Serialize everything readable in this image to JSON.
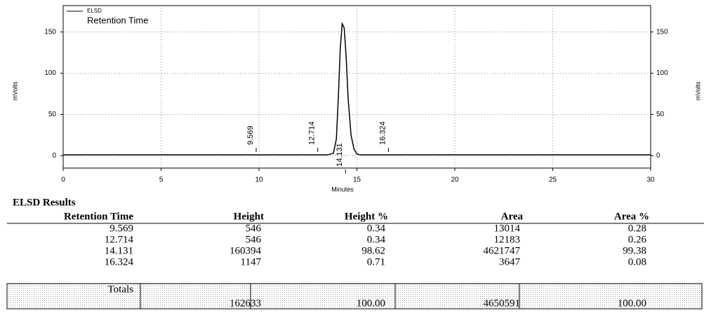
{
  "chart_data": {
    "type": "line",
    "legend_label": "ELSD",
    "subtitle": "Retention Time",
    "xlabel": "Minutes",
    "ylabel": "mVolts",
    "y2label": "mVolts",
    "x": [
      0,
      9,
      13.5,
      13.8,
      13.95,
      14.05,
      14.15,
      14.25,
      14.35,
      14.45,
      14.55,
      14.7,
      14.85,
      15.0,
      15.2,
      16,
      30
    ],
    "series": [
      {
        "name": "ELSD",
        "color": "#000000",
        "values": [
          1,
          1,
          1,
          3,
          20,
          70,
          130,
          160,
          155,
          120,
          70,
          25,
          8,
          2,
          1,
          1,
          1
        ]
      }
    ],
    "peak_labels": [
      9.569,
      12.714,
      14.131,
      16.324
    ],
    "xlim": [
      0,
      30
    ],
    "xticks": [
      0,
      5,
      10,
      15,
      20,
      25,
      30
    ],
    "ylim": [
      -15,
      182
    ],
    "yticks": [
      0,
      50,
      100,
      150
    ],
    "y2lim": [
      -15,
      182
    ],
    "y2ticks": [
      0,
      50,
      100,
      150
    ],
    "grid": true
  },
  "table": {
    "title": "ELSD Results",
    "header": [
      "Retention Time",
      "Height",
      "Height %",
      "Area",
      "Area %"
    ],
    "rows": [
      [
        "9.569",
        "546",
        "0.34",
        "13014",
        "0.28"
      ],
      [
        "12.714",
        "546",
        "0.34",
        "12183",
        "0.26"
      ],
      [
        "14.131",
        "160394",
        "98.62",
        "4621747",
        "99.38"
      ],
      [
        "16.324",
        "1147",
        "0.71",
        "3647",
        "0.08"
      ]
    ],
    "totals": [
      "Totals",
      "162633",
      "100.00",
      "4650591",
      "100.00"
    ]
  }
}
